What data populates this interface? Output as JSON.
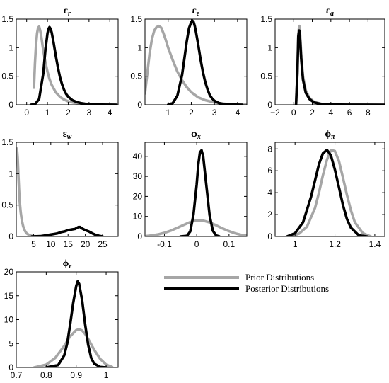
{
  "chart_data": [
    {
      "type": "line",
      "title": "εr",
      "title_base": "ε",
      "title_sub": "r",
      "xlim": [
        -0.5,
        4.4
      ],
      "ylim": [
        0,
        1.5
      ],
      "xticks": [
        0,
        1,
        2,
        3,
        4
      ],
      "yticks": [
        0,
        0.5,
        1,
        1.5
      ],
      "xtick_labels": [
        "0",
        "1",
        "2",
        "3",
        "4"
      ],
      "ytick_labels": [
        "0",
        "0.5",
        "1",
        "1.5"
      ],
      "series": [
        {
          "role": "prior",
          "color": "#a6a6a6",
          "x": [
            0.35,
            0.4,
            0.45,
            0.5,
            0.55,
            0.6,
            0.65,
            0.7,
            0.8,
            0.9,
            1.0,
            1.1,
            1.2,
            1.4,
            1.6,
            1.8,
            2.0,
            2.3,
            2.6,
            3.0,
            3.5,
            4.0,
            4.4
          ],
          "y": [
            0.3,
            0.72,
            1.05,
            1.25,
            1.35,
            1.37,
            1.3,
            1.2,
            0.95,
            0.75,
            0.58,
            0.45,
            0.35,
            0.22,
            0.14,
            0.09,
            0.06,
            0.035,
            0.02,
            0.01,
            0.005,
            0.002,
            0.001
          ]
        },
        {
          "role": "posterior",
          "color": "#000000",
          "x": [
            0.2,
            0.4,
            0.6,
            0.8,
            0.9,
            1.0,
            1.05,
            1.1,
            1.15,
            1.2,
            1.3,
            1.4,
            1.5,
            1.6,
            1.7,
            1.8,
            1.9,
            2.0,
            2.2,
            2.4,
            2.6,
            2.8,
            3.0,
            3.3,
            3.6,
            4.0,
            4.3
          ],
          "y": [
            0,
            0.01,
            0.1,
            0.55,
            0.95,
            1.25,
            1.33,
            1.36,
            1.33,
            1.27,
            1.08,
            0.86,
            0.66,
            0.49,
            0.36,
            0.26,
            0.19,
            0.14,
            0.08,
            0.05,
            0.03,
            0.018,
            0.01,
            0.005,
            0.003,
            0.001,
            0
          ]
        }
      ]
    },
    {
      "type": "line",
      "title": "εe",
      "title_base": "ε",
      "title_sub": "e",
      "xlim": [
        0,
        4.4
      ],
      "ylim": [
        0,
        1.5
      ],
      "xticks": [
        1,
        2,
        3,
        4
      ],
      "yticks": [
        0,
        0.5,
        1,
        1.5
      ],
      "xtick_labels": [
        "1",
        "2",
        "3",
        "4"
      ],
      "ytick_labels": [
        "0",
        "0.5",
        "1",
        "1.5"
      ],
      "series": [
        {
          "role": "prior",
          "color": "#a6a6a6",
          "x": [
            0.0,
            0.1,
            0.2,
            0.3,
            0.4,
            0.5,
            0.6,
            0.7,
            0.8,
            0.9,
            1.0,
            1.2,
            1.4,
            1.6,
            1.8,
            2.0,
            2.3,
            2.6,
            3.0,
            3.5,
            4.0,
            4.4
          ],
          "y": [
            0.2,
            0.55,
            0.9,
            1.15,
            1.3,
            1.36,
            1.38,
            1.35,
            1.25,
            1.13,
            1.0,
            0.78,
            0.58,
            0.43,
            0.31,
            0.22,
            0.13,
            0.08,
            0.04,
            0.015,
            0.006,
            0.002
          ]
        },
        {
          "role": "posterior",
          "color": "#000000",
          "x": [
            1.0,
            1.2,
            1.4,
            1.6,
            1.7,
            1.8,
            1.9,
            2.0,
            2.05,
            2.1,
            2.15,
            2.2,
            2.3,
            2.4,
            2.5,
            2.6,
            2.7,
            2.8,
            2.9,
            3.0,
            3.2,
            3.4,
            3.6,
            3.9,
            4.2
          ],
          "y": [
            0,
            0.03,
            0.16,
            0.52,
            0.8,
            1.1,
            1.34,
            1.45,
            1.47,
            1.45,
            1.38,
            1.28,
            1.05,
            0.8,
            0.58,
            0.4,
            0.27,
            0.17,
            0.11,
            0.07,
            0.03,
            0.012,
            0.005,
            0.002,
            0
          ]
        }
      ]
    },
    {
      "type": "line",
      "title": "εa",
      "title_base": "ε",
      "title_sub": "a",
      "xlim": [
        -2,
        9.8
      ],
      "ylim": [
        0,
        1.5
      ],
      "xticks": [
        -2,
        0,
        2,
        4,
        6,
        8
      ],
      "yticks": [
        0,
        0.5,
        1,
        1.5
      ],
      "xtick_labels": [
        "−2",
        "0",
        "2",
        "4",
        "6",
        "8"
      ],
      "ytick_labels": [
        "0",
        "0.5",
        "1",
        "1.5"
      ],
      "series": [
        {
          "role": "prior",
          "color": "#a6a6a6",
          "x": [
            0.25,
            0.4,
            0.5,
            0.6,
            0.7,
            0.8,
            1.0,
            1.3,
            1.7,
            2.2,
            3.0,
            4.0,
            6.0,
            9.8
          ],
          "y": [
            0,
            0.6,
            1.25,
            1.38,
            1.2,
            0.9,
            0.5,
            0.25,
            0.12,
            0.05,
            0.015,
            0.005,
            0.001,
            0
          ]
        },
        {
          "role": "posterior",
          "color": "#000000",
          "x": [
            0.25,
            0.4,
            0.5,
            0.6,
            0.7,
            0.8,
            1.0,
            1.3,
            1.7,
            2.2,
            3.0,
            4.0,
            6.0,
            9.8
          ],
          "y": [
            0,
            0.55,
            1.2,
            1.3,
            1.12,
            0.82,
            0.44,
            0.21,
            0.1,
            0.04,
            0.012,
            0.004,
            0.001,
            0
          ]
        }
      ]
    },
    {
      "type": "line",
      "title": "εw",
      "title_base": "ε",
      "title_sub": "w",
      "xlim": [
        0,
        29.5
      ],
      "ylim": [
        0,
        1.5
      ],
      "xticks": [
        5,
        10,
        15,
        20,
        25
      ],
      "yticks": [
        0,
        0.5,
        1,
        1.5
      ],
      "xtick_labels": [
        "5",
        "10",
        "15",
        "20",
        "25"
      ],
      "ytick_labels": [
        "0",
        "0.5",
        "1",
        "1.5"
      ],
      "series": [
        {
          "role": "prior",
          "color": "#a6a6a6",
          "x": [
            0.2,
            0.4,
            0.6,
            0.8,
            1.0,
            1.3,
            1.6,
            2.0,
            2.5,
            3.0,
            3.5,
            4.0,
            5.0,
            6.0,
            8.0
          ],
          "y": [
            1.4,
            1.25,
            1.0,
            0.75,
            0.55,
            0.38,
            0.26,
            0.16,
            0.09,
            0.05,
            0.03,
            0.015,
            0.005,
            0.002,
            0
          ]
        },
        {
          "role": "posterior",
          "color": "#000000",
          "x": [
            4.5,
            7,
            9,
            10,
            11,
            12,
            13,
            14,
            15,
            16,
            17,
            18,
            18.5,
            19,
            20,
            21,
            22,
            23,
            24,
            25
          ],
          "y": [
            0,
            0.005,
            0.02,
            0.03,
            0.04,
            0.05,
            0.07,
            0.08,
            0.1,
            0.11,
            0.12,
            0.15,
            0.15,
            0.13,
            0.1,
            0.08,
            0.05,
            0.025,
            0.01,
            0
          ]
        }
      ]
    },
    {
      "type": "line",
      "title": "ϕx",
      "title_base": "ϕ",
      "title_sub": "x",
      "xlim": [
        -0.16,
        0.155
      ],
      "ylim": [
        0,
        47
      ],
      "xticks": [
        -0.1,
        0,
        0.1
      ],
      "yticks": [
        0,
        10,
        20,
        30,
        40
      ],
      "xtick_labels": [
        "-0.1",
        "0",
        "0.1"
      ],
      "ytick_labels": [
        "0",
        "10",
        "20",
        "30",
        "40"
      ],
      "series": [
        {
          "role": "prior",
          "color": "#a6a6a6",
          "x": [
            -0.155,
            -0.14,
            -0.12,
            -0.1,
            -0.08,
            -0.06,
            -0.04,
            -0.02,
            0.0,
            0.02,
            0.04,
            0.06,
            0.08,
            0.1,
            0.12,
            0.14,
            0.155
          ],
          "y": [
            0.2,
            0.45,
            1.0,
            1.8,
            2.9,
            4.3,
            5.8,
            7.2,
            8.0,
            7.9,
            7.0,
            5.6,
            4.0,
            2.6,
            1.5,
            0.7,
            0.4
          ]
        },
        {
          "role": "posterior",
          "color": "#000000",
          "x": [
            -0.05,
            -0.03,
            -0.02,
            -0.01,
            0.0,
            0.005,
            0.01,
            0.015,
            0.02,
            0.03,
            0.04,
            0.05,
            0.06,
            0.07
          ],
          "y": [
            0,
            0.3,
            2.5,
            11.0,
            26.0,
            36.0,
            42.0,
            43.0,
            40.0,
            25.0,
            10.5,
            2.8,
            0.5,
            0
          ]
        }
      ]
    },
    {
      "type": "line",
      "title": "ϕπ",
      "title_base": "ϕ",
      "title_sub": "π",
      "xlim": [
        0.9,
        1.45
      ],
      "ylim": [
        0,
        8.6
      ],
      "xticks": [
        1,
        1.2,
        1.4
      ],
      "yticks": [
        0,
        2,
        4,
        6,
        8
      ],
      "xtick_labels": [
        "1",
        "1.2",
        "1.4"
      ],
      "ytick_labels": [
        "0",
        "2",
        "4",
        "6",
        "8"
      ],
      "series": [
        {
          "role": "prior",
          "color": "#a6a6a6",
          "x": [
            0.98,
            1.02,
            1.06,
            1.1,
            1.12,
            1.14,
            1.16,
            1.18,
            1.2,
            1.22,
            1.24,
            1.26,
            1.28,
            1.3,
            1.34,
            1.38
          ],
          "y": [
            0,
            0.25,
            0.9,
            2.6,
            4.0,
            5.6,
            7.0,
            7.9,
            7.8,
            6.9,
            5.4,
            3.8,
            2.4,
            1.3,
            0.3,
            0
          ]
        },
        {
          "role": "posterior",
          "color": "#000000",
          "x": [
            0.96,
            1.0,
            1.04,
            1.08,
            1.1,
            1.12,
            1.14,
            1.16,
            1.18,
            1.2,
            1.22,
            1.24,
            1.26,
            1.28,
            1.32,
            1.36
          ],
          "y": [
            0,
            0.3,
            1.3,
            3.6,
            5.1,
            6.6,
            7.6,
            7.9,
            7.4,
            6.1,
            4.5,
            2.9,
            1.6,
            0.8,
            0.1,
            0
          ]
        }
      ]
    },
    {
      "type": "line",
      "title": "ϕr",
      "title_base": "ϕ",
      "title_sub": "r",
      "xlim": [
        0.7,
        1.04
      ],
      "ylim": [
        0,
        20
      ],
      "xticks": [
        0.7,
        0.8,
        0.9,
        1.0
      ],
      "yticks": [
        0,
        5,
        10,
        15,
        20
      ],
      "xtick_labels": [
        "0.7",
        "0.8",
        "0.9",
        "1"
      ],
      "ytick_labels": [
        "0",
        "5",
        "10",
        "15",
        "20"
      ],
      "series": [
        {
          "role": "prior",
          "color": "#a6a6a6",
          "x": [
            0.76,
            0.8,
            0.83,
            0.86,
            0.88,
            0.9,
            0.91,
            0.92,
            0.93,
            0.94,
            0.96,
            0.98,
            1.0,
            1.02
          ],
          "y": [
            0,
            0.6,
            2.0,
            4.5,
            6.5,
            7.8,
            8.0,
            7.7,
            7.0,
            6.0,
            3.7,
            1.8,
            0.6,
            0.1
          ]
        },
        {
          "role": "posterior",
          "color": "#000000",
          "x": [
            0.8,
            0.84,
            0.86,
            0.87,
            0.88,
            0.89,
            0.9,
            0.905,
            0.91,
            0.92,
            0.93,
            0.94,
            0.95,
            0.96,
            0.98,
            1.0
          ],
          "y": [
            0,
            0.5,
            2.5,
            5.0,
            9.0,
            13.5,
            17.0,
            18.0,
            17.5,
            14.0,
            9.0,
            4.8,
            2.0,
            0.8,
            0.1,
            0
          ]
        }
      ]
    }
  ],
  "legend": {
    "items": [
      {
        "label": "Prior Distributions",
        "color": "#a6a6a6"
      },
      {
        "label": "Posterior Distributions",
        "color": "#000000"
      }
    ]
  }
}
